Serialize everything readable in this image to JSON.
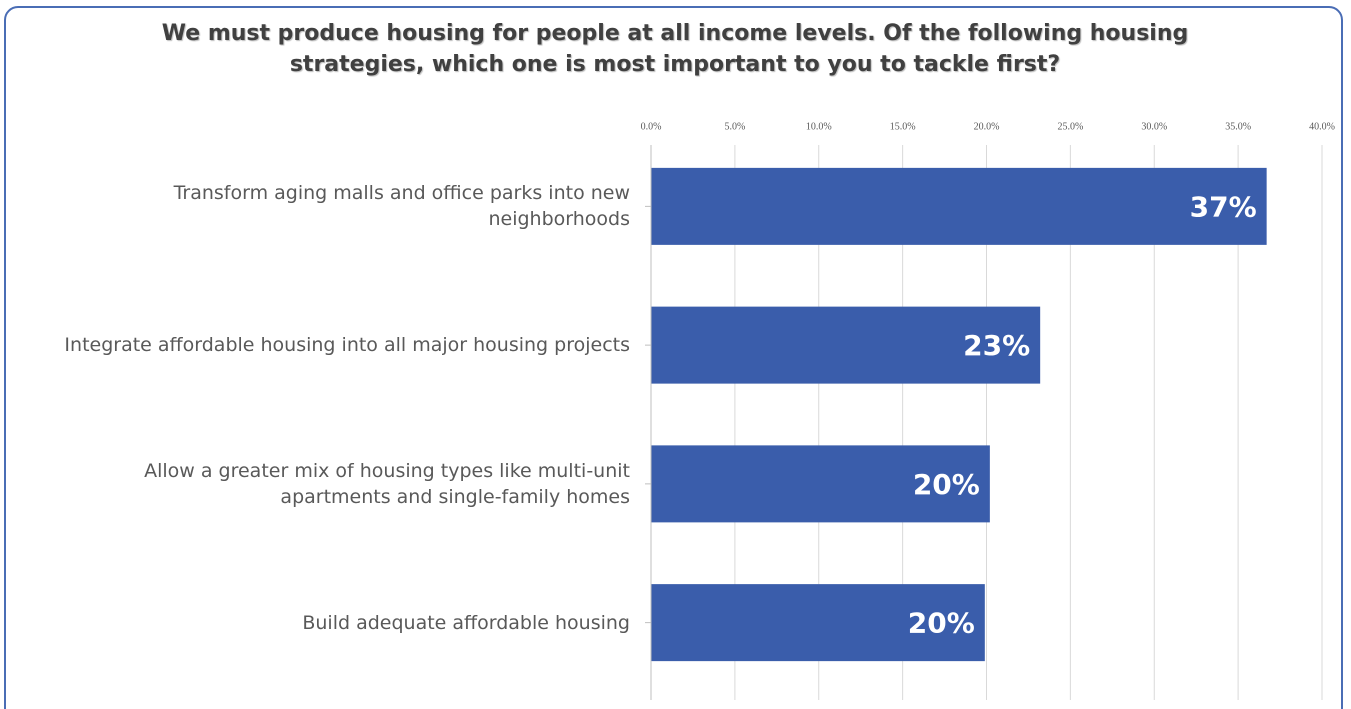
{
  "chart_data": {
    "type": "bar",
    "orientation": "horizontal",
    "title": "We must produce housing for people at all income levels. Of the following housing strategies, which one is most important to you to tackle first?",
    "categories": [
      "Transform aging malls and office parks into new neighborhoods",
      "Integrate affordable housing into all major housing projects",
      "Allow a greater mix of housing types like multi-unit apartments and single-family homes",
      "Build adequate affordable housing"
    ],
    "values": [
      36.7,
      23.2,
      20.2,
      19.9
    ],
    "value_labels": [
      "37%",
      "23%",
      "20%",
      "20%"
    ],
    "color": "#3a5dab",
    "xlim": [
      0,
      40
    ],
    "xticks": [
      {
        "value": 0,
        "label": "0.0%"
      },
      {
        "value": 5,
        "label": "5.0%"
      },
      {
        "value": 10,
        "label": "10.0%"
      },
      {
        "value": 15,
        "label": "15.0%"
      },
      {
        "value": 20,
        "label": "20.0%"
      },
      {
        "value": 25,
        "label": "25.0%"
      },
      {
        "value": 30,
        "label": "30.0%"
      },
      {
        "value": 35,
        "label": "35.0%"
      },
      {
        "value": 40,
        "label": "40.0%"
      }
    ],
    "grid": true
  }
}
